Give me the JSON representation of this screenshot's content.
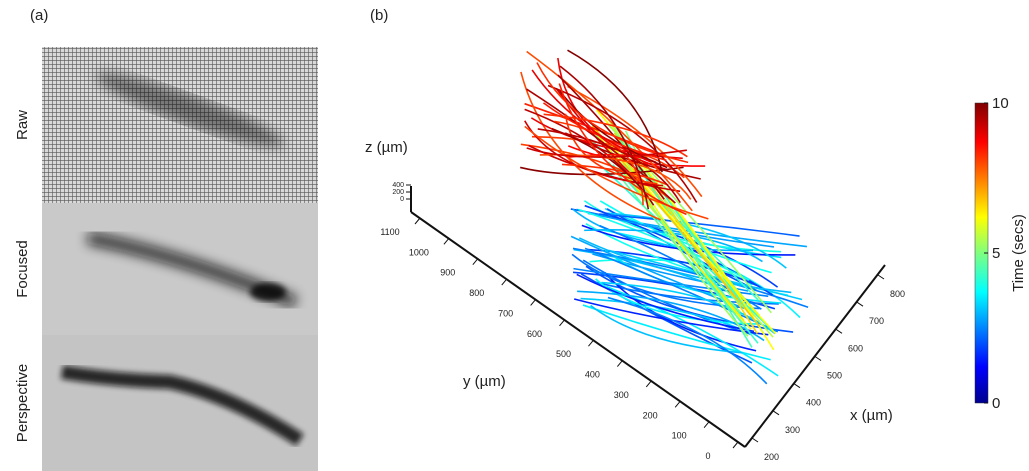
{
  "panel_a": {
    "label": "(a)",
    "rows": [
      "Raw",
      "Focused",
      "Perspective"
    ]
  },
  "panel_b": {
    "label": "(b)",
    "z_axis": {
      "label": "z (µm)",
      "ticks": [
        400,
        200,
        0
      ]
    },
    "y_axis": {
      "label": "y (µm)",
      "ticks": [
        1100,
        1000,
        900,
        800,
        700,
        600,
        500,
        400,
        300,
        200,
        100,
        0
      ]
    },
    "x_axis": {
      "label": "x (µm)",
      "ticks": [
        200,
        300,
        400,
        500,
        600,
        700,
        800
      ]
    },
    "colorbar": {
      "label": "Time (secs)",
      "range": [
        0,
        10
      ],
      "ticks": [
        0,
        5,
        10
      ]
    }
  }
}
